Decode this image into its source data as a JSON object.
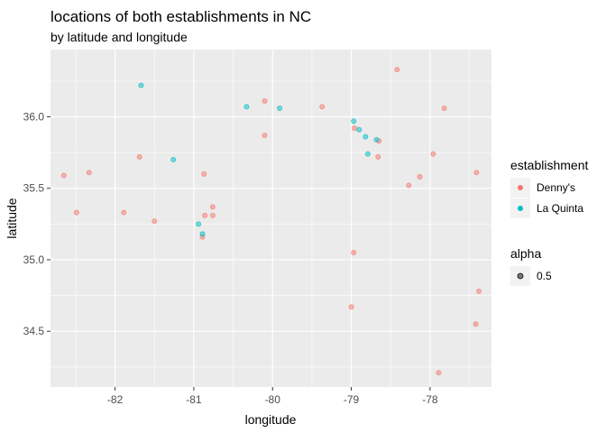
{
  "colors": {
    "panel_bg": "#ebebeb",
    "grid_major": "#ffffff",
    "dennys": "#f8766d",
    "la_quinta": "#00bfc4",
    "alpha_key": "#000000",
    "legend_key_bg": "#f2f2f2"
  },
  "chart_data": {
    "type": "scatter",
    "title": "locations of both establishments in NC",
    "subtitle": "by latitude and longitude",
    "xlabel": "longitude",
    "ylabel": "latitude",
    "xlim": [
      -82.82,
      -77.22
    ],
    "ylim": [
      34.11,
      36.47
    ],
    "x_ticks": [
      -82,
      -81,
      -80,
      -79,
      -78
    ],
    "x_tick_labels": [
      "-82",
      "-81",
      "-80",
      "-79",
      "-78"
    ],
    "y_ticks": [
      34.5,
      35.0,
      35.5,
      36.0
    ],
    "y_tick_labels": [
      "34.5",
      "35.0",
      "35.5",
      "36.0"
    ],
    "grid": true,
    "point_alpha": 0.5,
    "legend": {
      "placement": "right",
      "color_title": "establishment",
      "color_entries": [
        "Denny's",
        "La Quinta"
      ],
      "alpha_title": "alpha",
      "alpha_entries": [
        "0.5"
      ]
    },
    "series": [
      {
        "name": "Denny's",
        "points": [
          [
            -82.65,
            35.59
          ],
          [
            -82.33,
            35.61
          ],
          [
            -82.49,
            35.33
          ],
          [
            -81.89,
            35.33
          ],
          [
            -81.69,
            35.72
          ],
          [
            -81.5,
            35.27
          ],
          [
            -80.87,
            35.6
          ],
          [
            -80.86,
            35.31
          ],
          [
            -80.76,
            35.37
          ],
          [
            -80.76,
            35.31
          ],
          [
            -80.89,
            35.16
          ],
          [
            -80.1,
            36.11
          ],
          [
            -80.1,
            35.87
          ],
          [
            -79.37,
            36.07
          ],
          [
            -78.96,
            35.92
          ],
          [
            -78.65,
            35.83
          ],
          [
            -78.66,
            35.72
          ],
          [
            -78.42,
            36.33
          ],
          [
            -77.96,
            35.74
          ],
          [
            -77.82,
            36.06
          ],
          [
            -78.27,
            35.52
          ],
          [
            -78.13,
            35.58
          ],
          [
            -77.41,
            35.61
          ],
          [
            -78.97,
            35.05
          ],
          [
            -79.0,
            34.67
          ],
          [
            -77.38,
            34.78
          ],
          [
            -77.42,
            34.55
          ],
          [
            -77.89,
            34.21
          ]
        ]
      },
      {
        "name": "La Quinta",
        "points": [
          [
            -81.67,
            36.22
          ],
          [
            -81.26,
            35.7
          ],
          [
            -80.33,
            36.07
          ],
          [
            -79.91,
            36.06
          ],
          [
            -78.97,
            35.97
          ],
          [
            -78.9,
            35.91
          ],
          [
            -78.82,
            35.86
          ],
          [
            -78.79,
            35.74
          ],
          [
            -78.68,
            35.84
          ],
          [
            -80.94,
            35.25
          ],
          [
            -80.89,
            35.18
          ]
        ]
      }
    ]
  }
}
